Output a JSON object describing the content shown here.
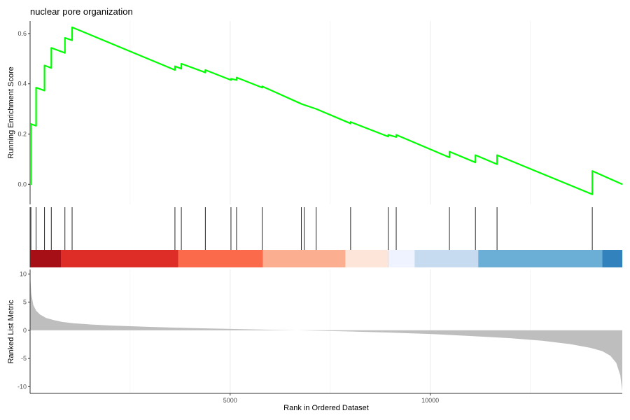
{
  "chart_data": {
    "type": "line",
    "title": "nuclear pore organization",
    "xlabel": "Rank in Ordered Dataset",
    "xlim": [
      0,
      14800
    ],
    "xticks": [
      5000,
      10000
    ],
    "xtick_labels": [
      "5000",
      "10000"
    ],
    "grid": true,
    "running_score": {
      "ylabel": "Running Enrichment Score",
      "ylim": [
        -0.08,
        0.65
      ],
      "yticks": [
        0.0,
        0.2,
        0.4,
        0.6
      ],
      "ytick_labels": [
        "0.0",
        "0.2",
        "0.4",
        "0.6"
      ],
      "color": "#00ff00",
      "x": [
        0,
        20,
        20,
        150,
        150,
        360,
        360,
        530,
        530,
        870,
        870,
        1050,
        1050,
        3620,
        3620,
        3780,
        3780,
        4380,
        4380,
        5020,
        5020,
        5160,
        5160,
        5800,
        5800,
        6780,
        6850,
        6850,
        7150,
        7150,
        8010,
        8010,
        8950,
        8950,
        9150,
        9150,
        10480,
        10480,
        11130,
        11130,
        11670,
        11670,
        14050,
        14050,
        14800
      ],
      "y": [
        0.0,
        0.0,
        0.24,
        0.233,
        0.385,
        0.373,
        0.473,
        0.463,
        0.543,
        0.523,
        0.583,
        0.573,
        0.625,
        0.455,
        0.47,
        0.46,
        0.48,
        0.445,
        0.455,
        0.415,
        0.42,
        0.415,
        0.425,
        0.385,
        0.39,
        0.32,
        0.316,
        0.316,
        0.3,
        0.3,
        0.242,
        0.248,
        0.19,
        0.197,
        0.188,
        0.197,
        0.107,
        0.13,
        0.087,
        0.116,
        0.08,
        0.116,
        -0.04,
        0.053,
        0.0
      ]
    },
    "hit_positions": [
      20,
      150,
      360,
      530,
      870,
      1050,
      3620,
      3780,
      4380,
      5020,
      5160,
      5800,
      6780,
      6850,
      7150,
      8010,
      8950,
      9150,
      10480,
      11130,
      11670,
      14050
    ],
    "color_band": [
      {
        "from": 0,
        "to": 770,
        "color": "#a50f15"
      },
      {
        "from": 770,
        "to": 3700,
        "color": "#de2d26"
      },
      {
        "from": 3700,
        "to": 5820,
        "color": "#fb6a4a"
      },
      {
        "from": 5820,
        "to": 7880,
        "color": "#fcae91"
      },
      {
        "from": 7880,
        "to": 8950,
        "color": "#fee5d9"
      },
      {
        "from": 8950,
        "to": 9610,
        "color": "#eff3ff"
      },
      {
        "from": 9610,
        "to": 11200,
        "color": "#c6dbef"
      },
      {
        "from": 11200,
        "to": 14300,
        "color": "#6baed6"
      },
      {
        "from": 14300,
        "to": 14800,
        "color": "#3182bd"
      }
    ],
    "ranked_metric": {
      "ylabel": "Ranked List Metric",
      "ylim": [
        -11.2,
        10.8
      ],
      "yticks": [
        -10,
        -5,
        0,
        5,
        10
      ],
      "ytick_labels": [
        "-10",
        "-5",
        "0",
        "5",
        "10"
      ],
      "color": "#bebebe",
      "x": [
        0,
        30,
        80,
        150,
        250,
        400,
        600,
        800,
        1100,
        1500,
        2000,
        3000,
        4000,
        5000,
        6000,
        7000,
        8000,
        9000,
        10000,
        11000,
        12000,
        12800,
        13500,
        14000,
        14300,
        14500,
        14650,
        14750,
        14800
      ],
      "y": [
        10.0,
        6.5,
        4.5,
        3.5,
        2.8,
        2.2,
        1.8,
        1.5,
        1.25,
        1.05,
        0.85,
        0.6,
        0.4,
        0.25,
        0.1,
        -0.05,
        -0.2,
        -0.4,
        -0.65,
        -1.0,
        -1.4,
        -1.85,
        -2.45,
        -3.1,
        -3.7,
        -4.5,
        -5.8,
        -8.0,
        -10.8
      ]
    }
  }
}
